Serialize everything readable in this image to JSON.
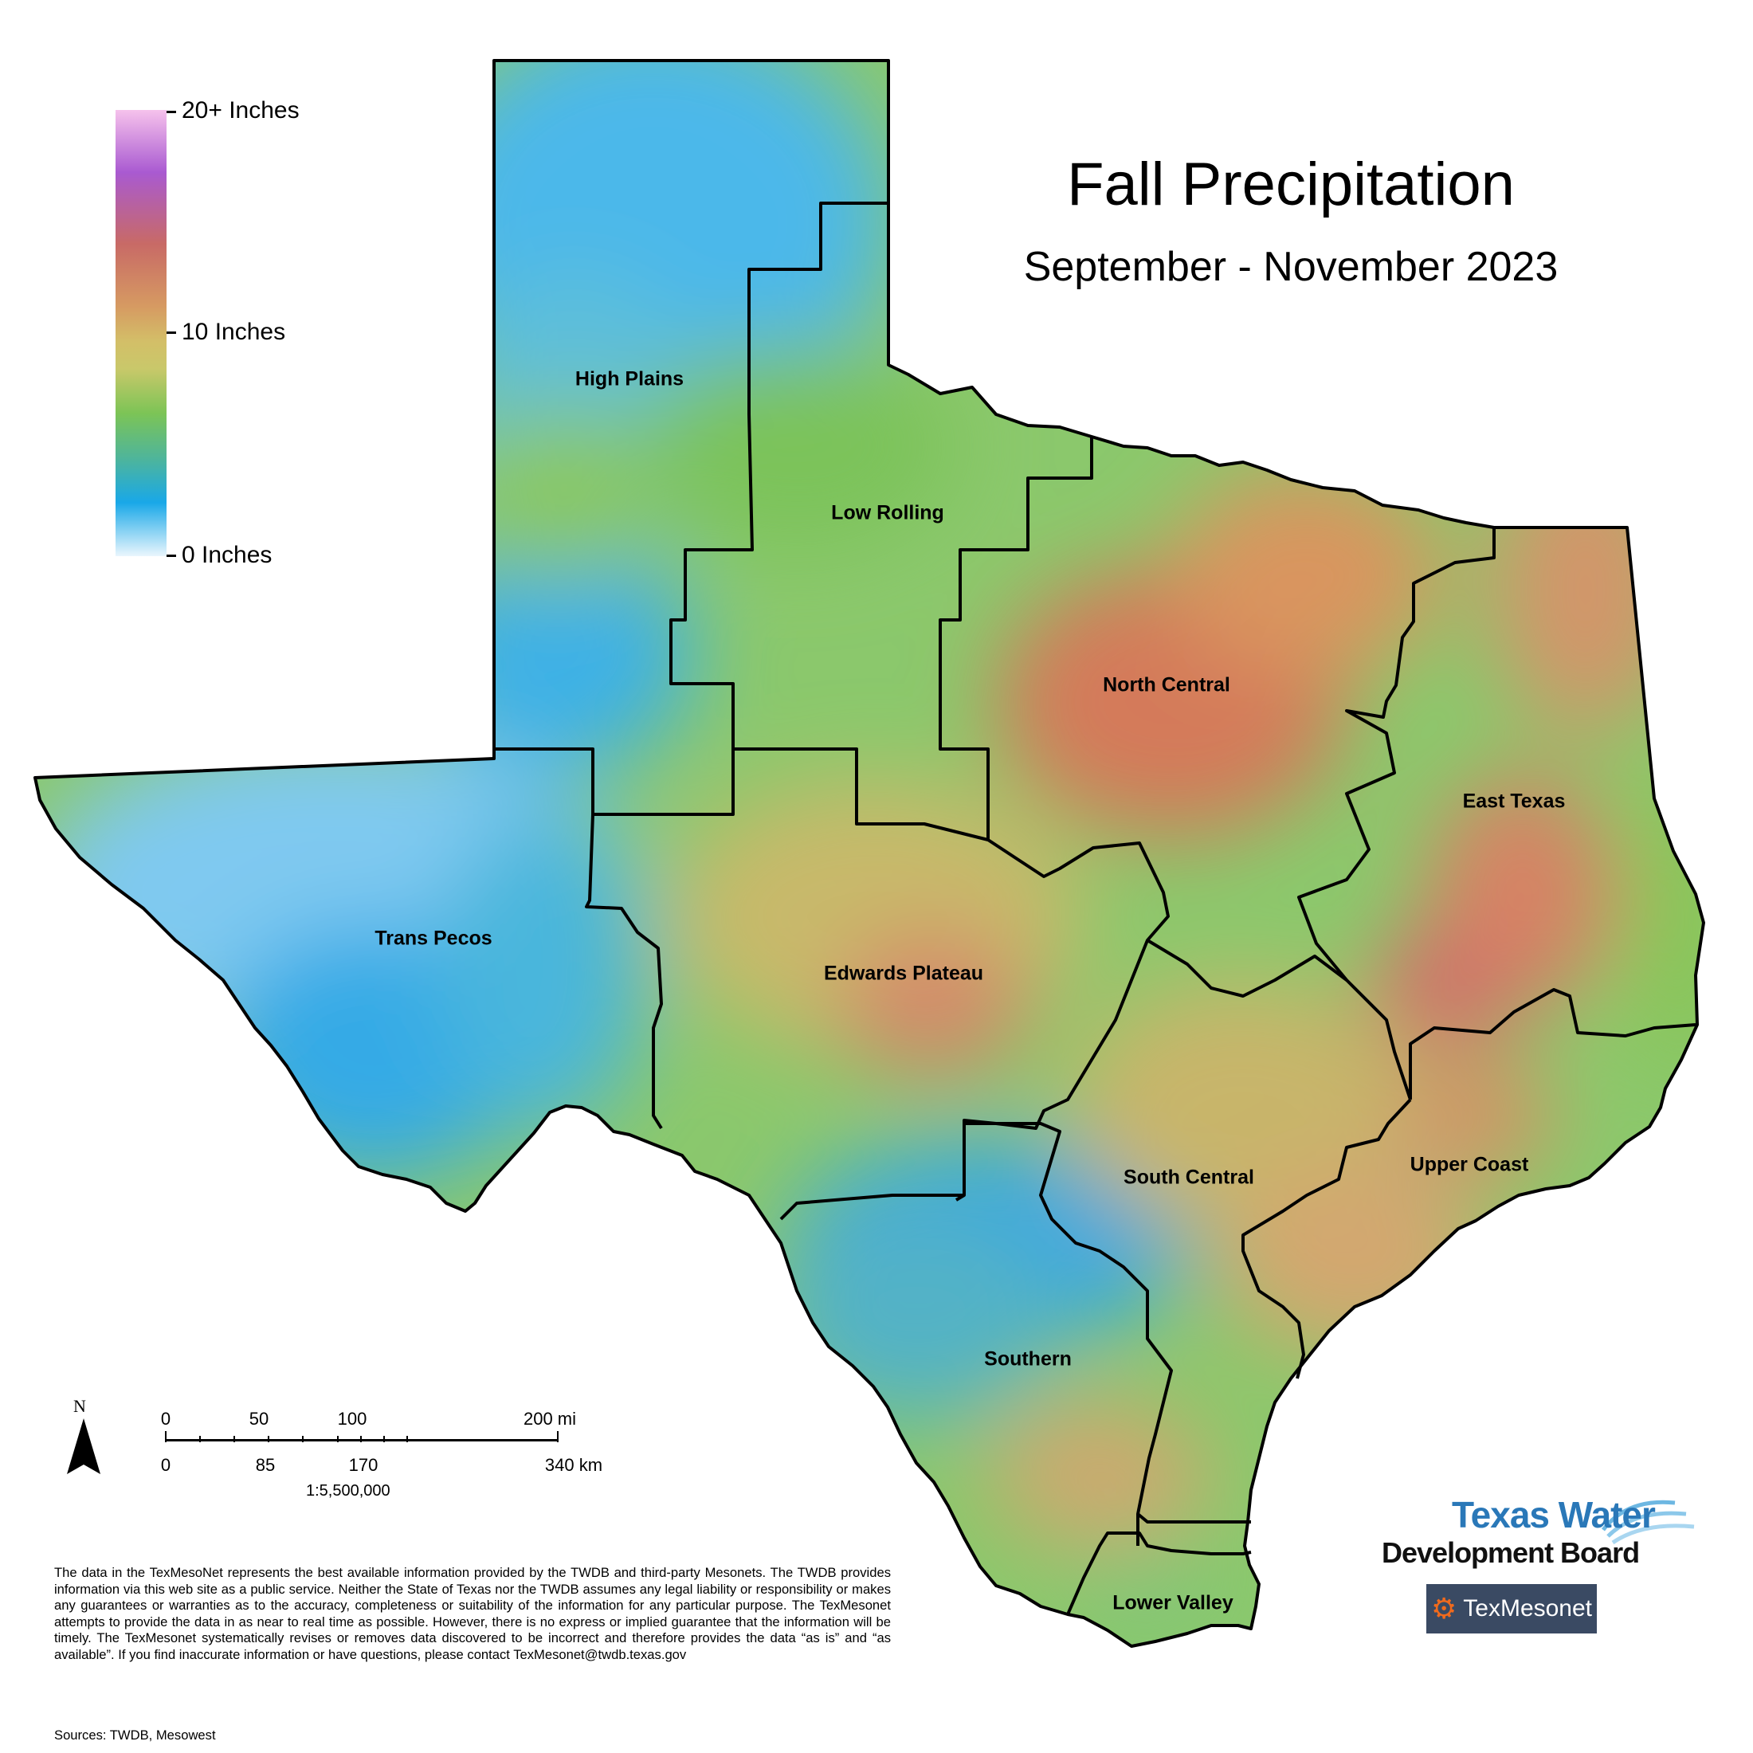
{
  "title": "Fall Precipitation",
  "subtitle": "September - November 2023",
  "legend": {
    "labels": {
      "top": "20+ Inches",
      "middle": "10 Inches",
      "bottom": "0 Inches"
    },
    "colors": [
      "#f6c2ec",
      "#a95ad1",
      "#c86a66",
      "#d69a62",
      "#d3bf68",
      "#7cc456",
      "#19a8e8",
      "#eaf6fd"
    ]
  },
  "regions": {
    "high_plains": "High Plains",
    "low_rolling": "Low Rolling",
    "north_central": "North Central",
    "east_texas": "East Texas",
    "trans_pecos": "Trans Pecos",
    "edwards_plateau": "Edwards Plateau",
    "south_central": "South Central",
    "upper_coast": "Upper Coast",
    "southern": "Southern",
    "lower_valley": "Lower Valley"
  },
  "compass": {
    "letter": "N"
  },
  "scale": {
    "miles": [
      "0",
      "50",
      "100",
      "200 mi"
    ],
    "km": [
      "0",
      "85",
      "170",
      "340 km"
    ],
    "ratio": "1:5,500,000"
  },
  "disclaimer": "The data in the TexMesoNet represents the best available information provided by the TWDB and third-party Mesonets. The TWDB provides information via this web site as a public service. Neither the State of Texas nor the TWDB assumes any legal liability or responsibility or makes any guarantees or warranties as to the accuracy, completeness or suitability of the information for any particular purpose. The TexMesonet attempts to provide the data in as near to real time as possible. However, there is no express or implied guarantee that the information will be timely. The TexMesonet systematically revises or removes data discovered to be incorrect and therefore provides the data “as is” and “as available”. If you find inaccurate information or have questions, please contact TexMesonet@twdb.texas.gov",
  "sources": "Sources: TWDB, Mesowest",
  "logos": {
    "twdb_line1": "Texas Water",
    "twdb_line2": "Development Board",
    "texmesonet": "TexMesonet"
  }
}
